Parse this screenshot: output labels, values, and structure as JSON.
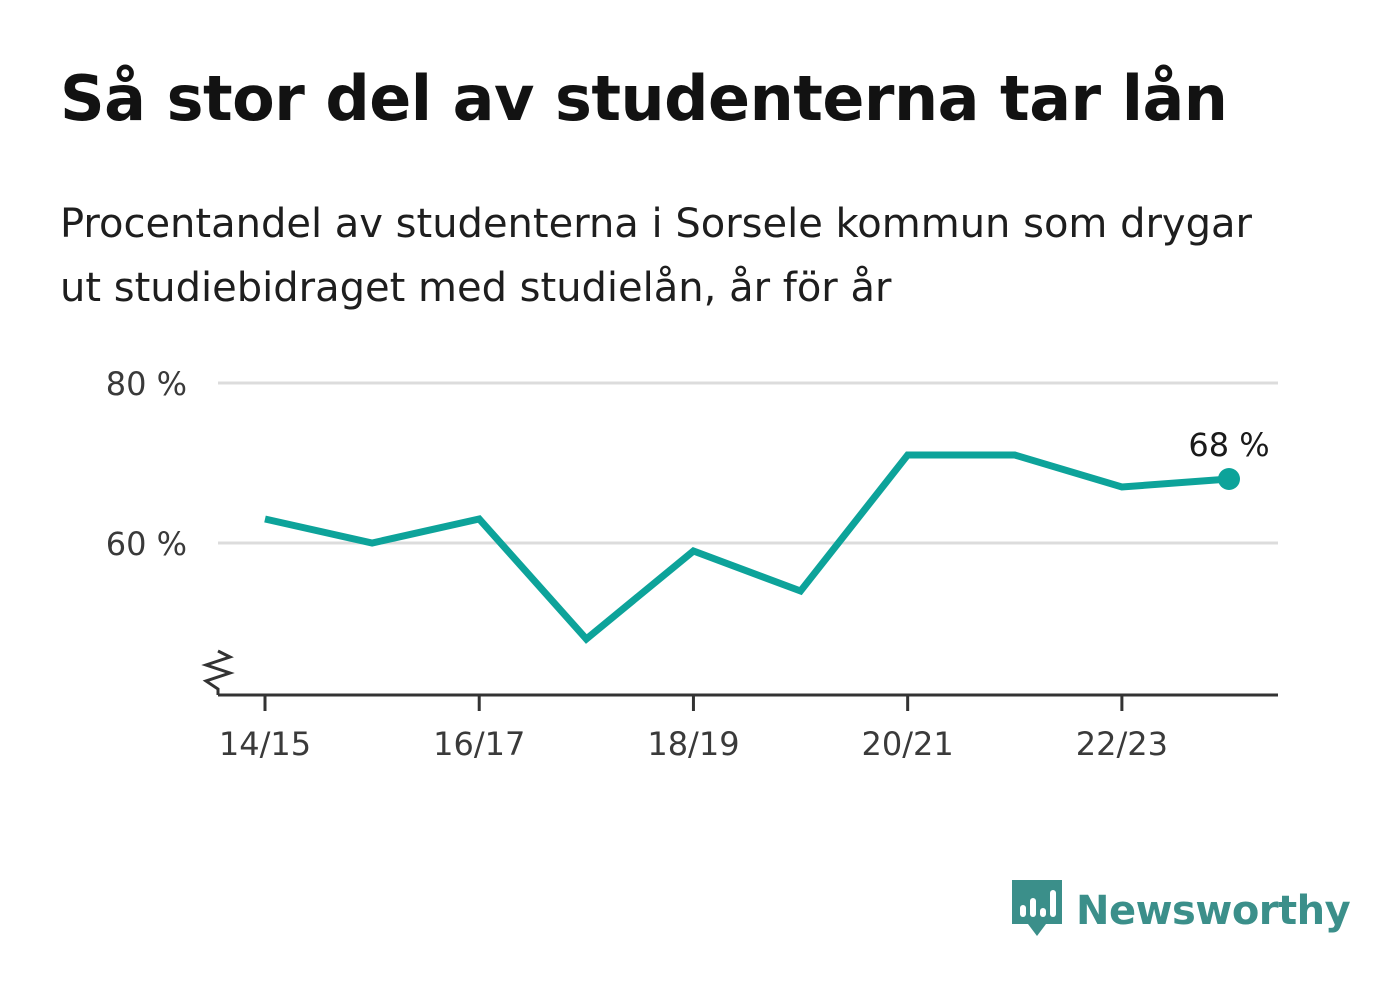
{
  "title": "Så stor del av studenterna tar lån",
  "subtitle": "Procentandel av studenterna i Sorsele kommun som drygar ut studiebidraget med studielån, år för år",
  "brand": {
    "name": "Newsworthy",
    "icon": "newsworthy-logo-icon",
    "color": "#3b8f8a"
  },
  "colors": {
    "line": "#0da39a",
    "grid": "#dcdcdc",
    "axis": "#333333"
  },
  "chart_data": {
    "type": "line",
    "title": "Så stor del av studenterna tar lån",
    "xlabel": "",
    "ylabel": "",
    "x": [
      "14/15",
      "15/16",
      "16/17",
      "17/18",
      "18/19",
      "19/20",
      "20/21",
      "21/22",
      "22/23",
      "23/24"
    ],
    "xticks": [
      "14/15",
      "16/17",
      "18/19",
      "20/21",
      "22/23"
    ],
    "yticks": [
      60,
      80
    ],
    "ytick_labels": [
      "60 %",
      "80 %"
    ],
    "ylim": [
      41,
      80
    ],
    "y_axis_break": true,
    "grid": true,
    "series": [
      {
        "values": [
          63,
          60,
          63,
          48,
          59,
          54,
          71,
          71,
          67,
          68
        ]
      }
    ],
    "annotation": {
      "text": "68 %",
      "index": 9
    }
  }
}
